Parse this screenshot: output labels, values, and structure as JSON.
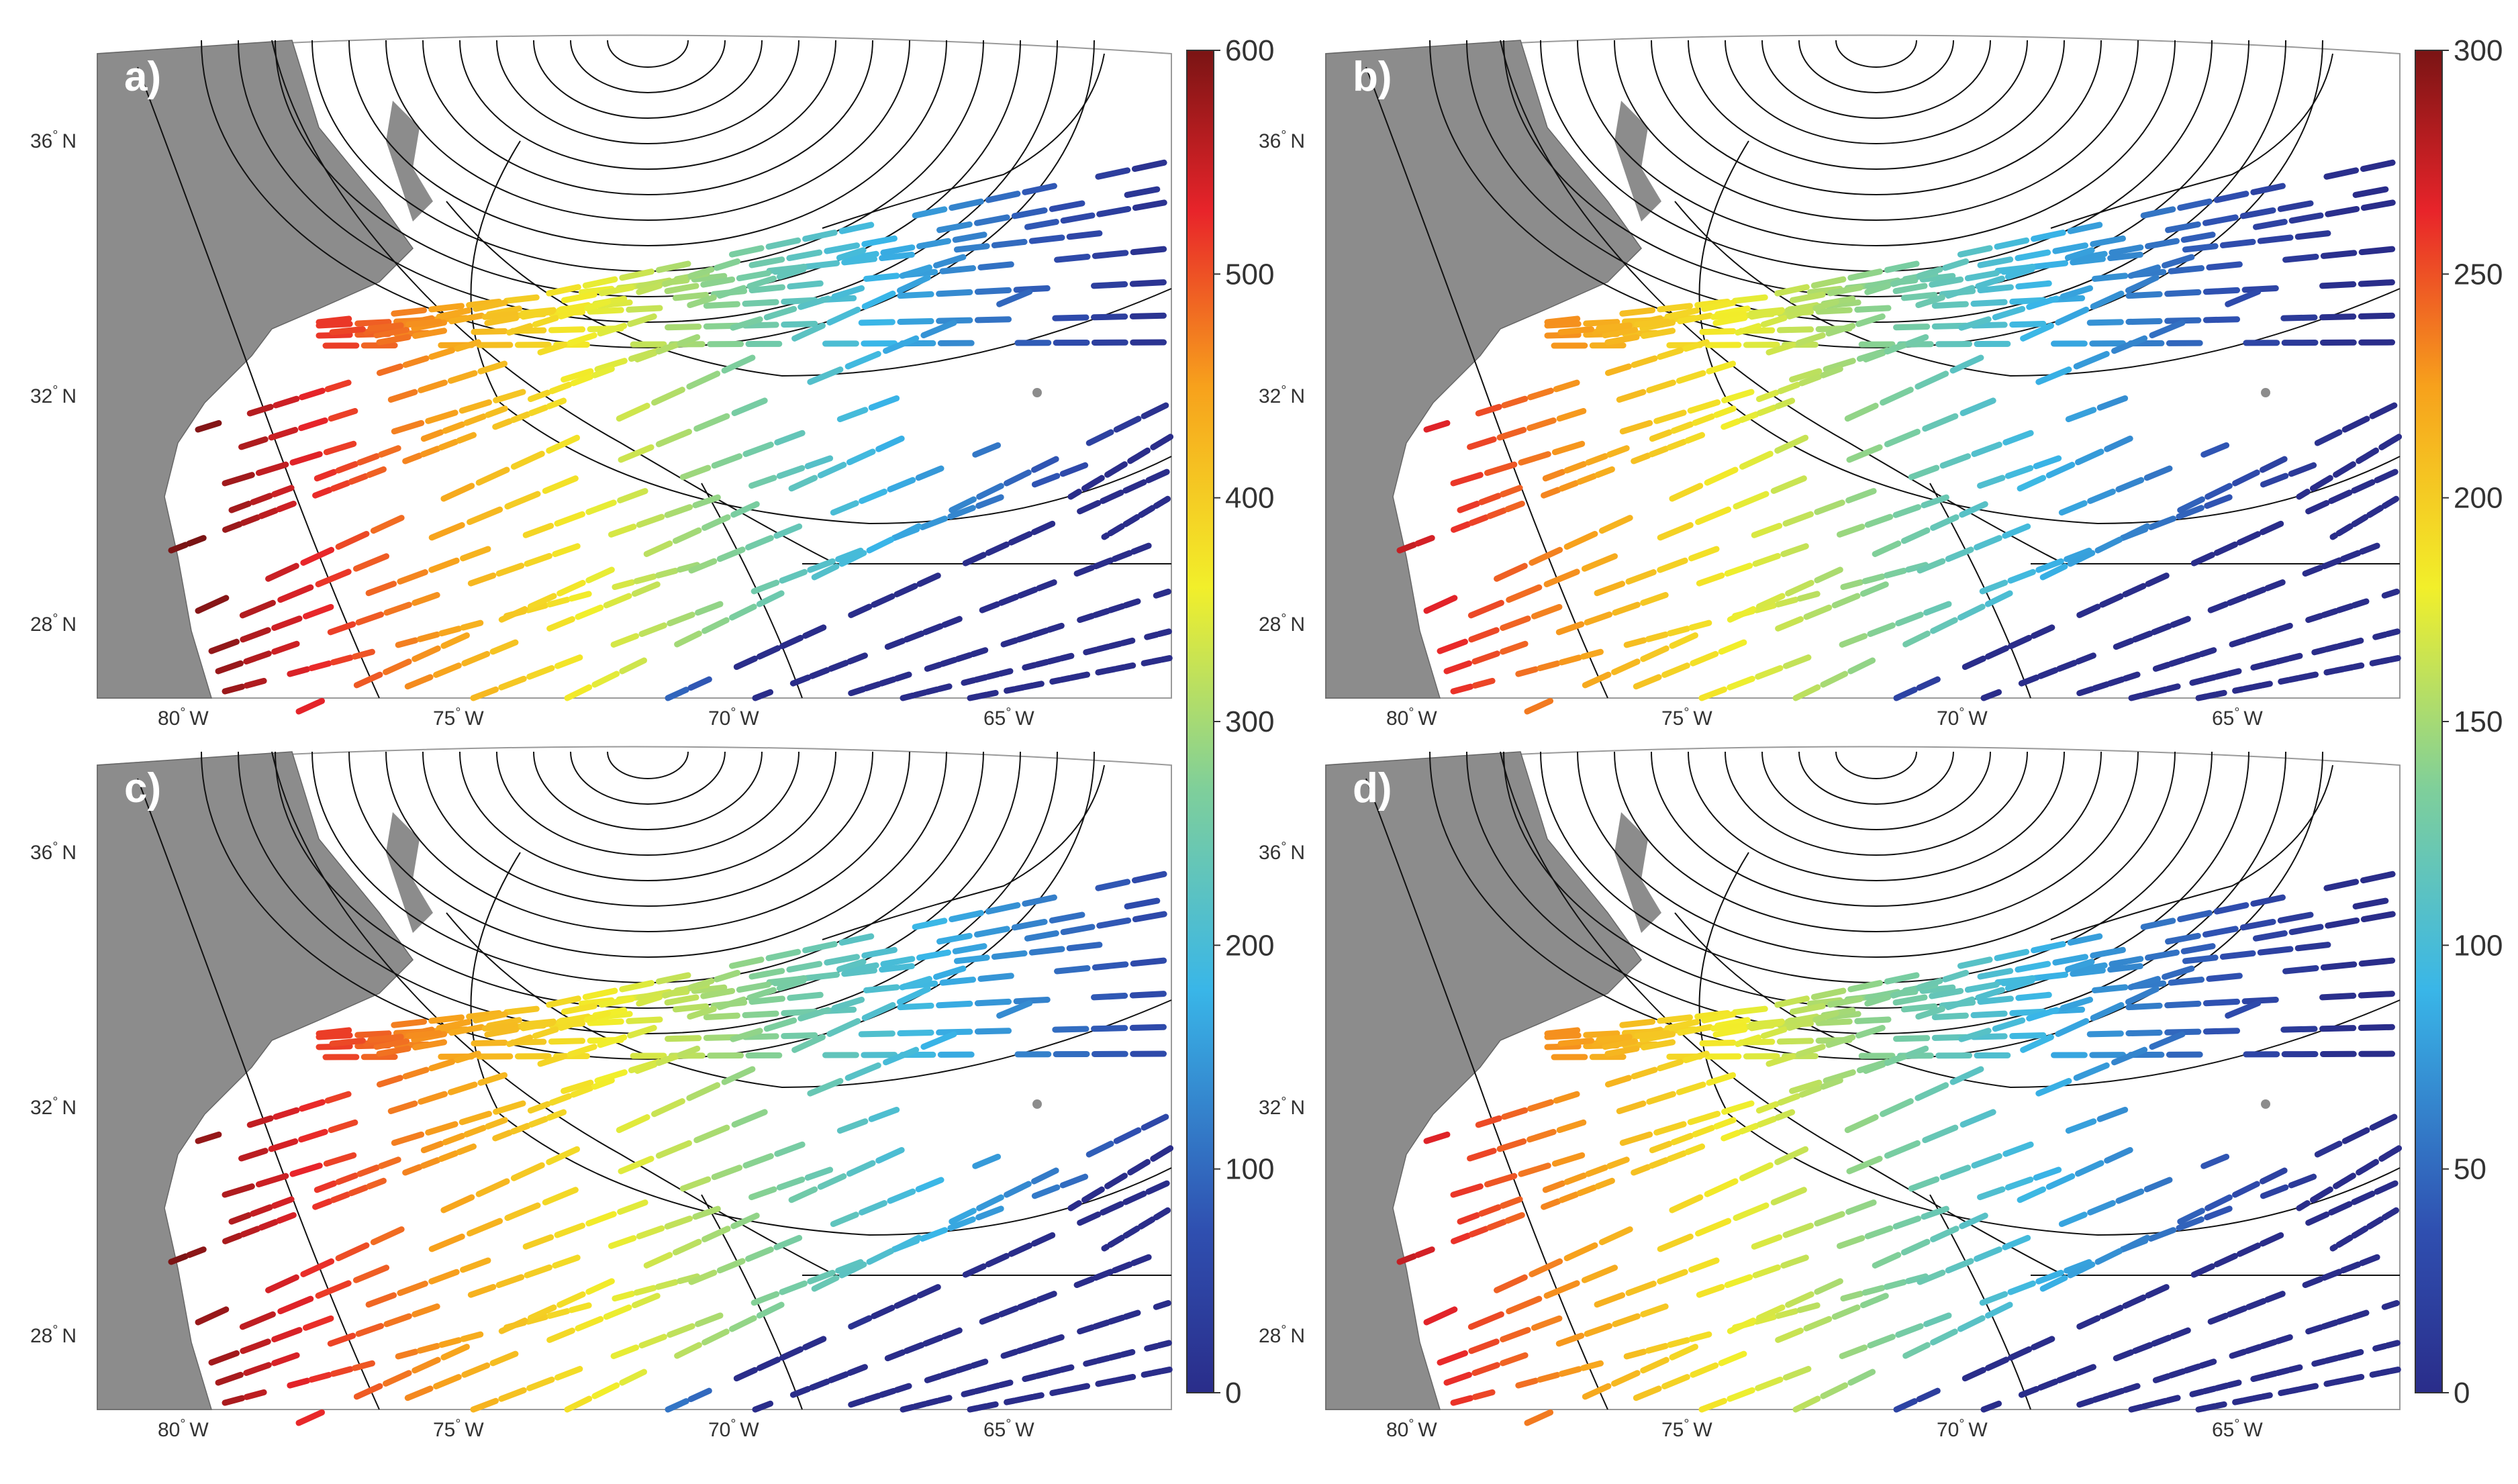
{
  "panels": [
    {
      "id": "a",
      "label": "a)"
    },
    {
      "id": "b",
      "label": "b)"
    },
    {
      "id": "c",
      "label": "c)"
    },
    {
      "id": "d",
      "label": "d)"
    }
  ],
  "lat_labels": [
    {
      "deg": "36",
      "hemi": "N"
    },
    {
      "deg": "32",
      "hemi": "N"
    },
    {
      "deg": "28",
      "hemi": "N"
    }
  ],
  "lon_labels": [
    {
      "deg": "80",
      "hemi": "W"
    },
    {
      "deg": "75",
      "hemi": "W"
    },
    {
      "deg": "70",
      "hemi": "W"
    },
    {
      "deg": "65",
      "hemi": "W"
    }
  ],
  "colorbars": [
    {
      "id": "left",
      "ticks": [
        "600",
        "500",
        "400",
        "300",
        "200",
        "100",
        "0"
      ]
    },
    {
      "id": "right",
      "ticks": [
        "300",
        "250",
        "200",
        "150",
        "100",
        "50",
        "0"
      ]
    }
  ],
  "colors": {
    "land": "#8c8c8c",
    "contour": "#111111",
    "jet": [
      "#00007f",
      "#0000ff",
      "#007fff",
      "#00ffff",
      "#7fff7f",
      "#ffff00",
      "#ff7f00",
      "#ff0000",
      "#7f0000"
    ]
  }
}
